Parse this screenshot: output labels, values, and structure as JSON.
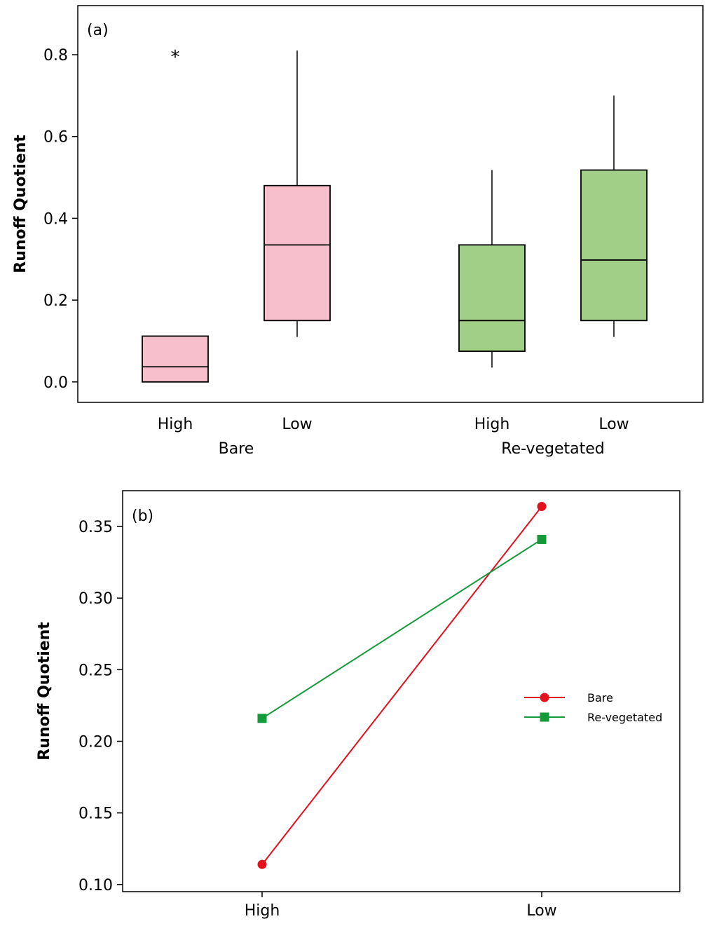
{
  "chart_data": [
    {
      "type": "box",
      "panel_label": "(a)",
      "ylabel": "Runoff Quotient",
      "ylim": [
        -0.05,
        0.92
      ],
      "y_ticks": [
        0.0,
        0.2,
        0.4,
        0.6,
        0.8
      ],
      "y_tick_labels": [
        "0.0",
        "0.2",
        "0.4",
        "0.6",
        "0.8"
      ],
      "groups": [
        "Bare",
        "Re-vegetated"
      ],
      "categories": [
        "High",
        "Low",
        "High",
        "Low"
      ],
      "colors": {
        "Bare": "#f7bfcb",
        "Re-vegetated": "#a2cf87"
      },
      "boxes": [
        {
          "group": "Bare",
          "label": "High",
          "whisker_low": 0.0,
          "q1": 0.0,
          "median": 0.037,
          "q3": 0.112,
          "whisker_high": 0.112,
          "outliers": [
            0.8
          ],
          "outlier_symbol": "*"
        },
        {
          "group": "Bare",
          "label": "Low",
          "whisker_low": 0.11,
          "q1": 0.15,
          "median": 0.335,
          "q3": 0.48,
          "whisker_high": 0.81,
          "outliers": []
        },
        {
          "group": "Re-vegetated",
          "label": "High",
          "whisker_low": 0.035,
          "q1": 0.075,
          "median": 0.15,
          "q3": 0.335,
          "whisker_high": 0.518,
          "outliers": []
        },
        {
          "group": "Re-vegetated",
          "label": "Low",
          "whisker_low": 0.11,
          "q1": 0.15,
          "median": 0.298,
          "q3": 0.518,
          "whisker_high": 0.7,
          "outliers": []
        }
      ]
    },
    {
      "type": "line",
      "panel_label": "(b)",
      "ylabel": "Runoff Quotient",
      "ylim": [
        0.095,
        0.375
      ],
      "y_ticks": [
        0.1,
        0.15,
        0.2,
        0.25,
        0.3,
        0.35
      ],
      "y_tick_labels": [
        "0.10",
        "0.15",
        "0.20",
        "0.25",
        "0.30",
        "0.35"
      ],
      "categories": [
        "High",
        "Low"
      ],
      "legend_position": "right",
      "series": [
        {
          "name": "Bare",
          "values": [
            0.114,
            0.364
          ],
          "color": "#e3101e",
          "marker": "circle"
        },
        {
          "name": "Re-vegetated",
          "values": [
            0.216,
            0.341
          ],
          "color": "#159a3a",
          "marker": "square"
        }
      ]
    }
  ]
}
